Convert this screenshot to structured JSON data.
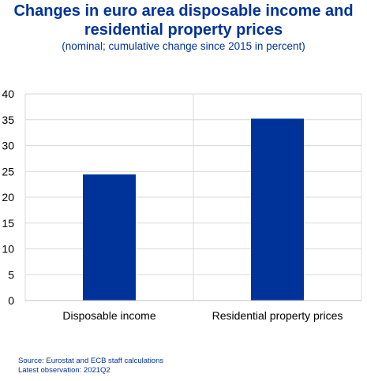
{
  "chart_data": {
    "type": "bar",
    "title": "Changes in euro area disposable income and residential property prices",
    "subtitle": "(nominal; cumulative change since 2015 in percent)",
    "categories": [
      "Disposable income",
      "Residential property prices"
    ],
    "values": [
      24.4,
      35.2
    ],
    "ylim": [
      0,
      40
    ],
    "yticks": [
      0,
      5,
      10,
      15,
      20,
      25,
      30,
      35,
      40
    ],
    "grid": true,
    "bar_color": "#003399",
    "grid_color": "#d9d9d9",
    "axis_color": "#bfbfbf"
  },
  "footnotes": {
    "source": "Source: Eurostat and ECB staff calculations",
    "latest": "Latest observation: 2021Q2"
  }
}
